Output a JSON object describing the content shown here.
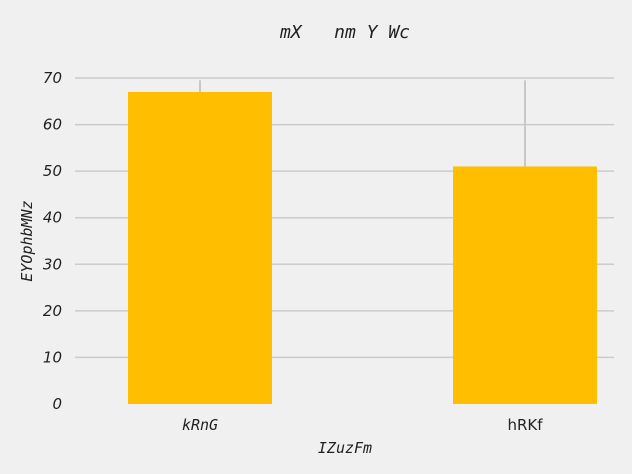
{
  "chart_data": {
    "type": "bar",
    "title": "mX   nm Y Wc",
    "xlabel": "IZuzFm",
    "ylabel": "EYOphbMNz",
    "categories": [
      "kRnG",
      "hRKf"
    ],
    "values": [
      67,
      51
    ],
    "error_upper": [
      69.5,
      69.5
    ],
    "ylim": [
      0,
      70
    ],
    "yticks": [
      "0",
      "10",
      "20",
      "30",
      "40",
      "50",
      "60",
      "70"
    ],
    "grid": "y",
    "legend": "none",
    "bar_color": "#ffbf00",
    "background": "#f0f0f0"
  }
}
